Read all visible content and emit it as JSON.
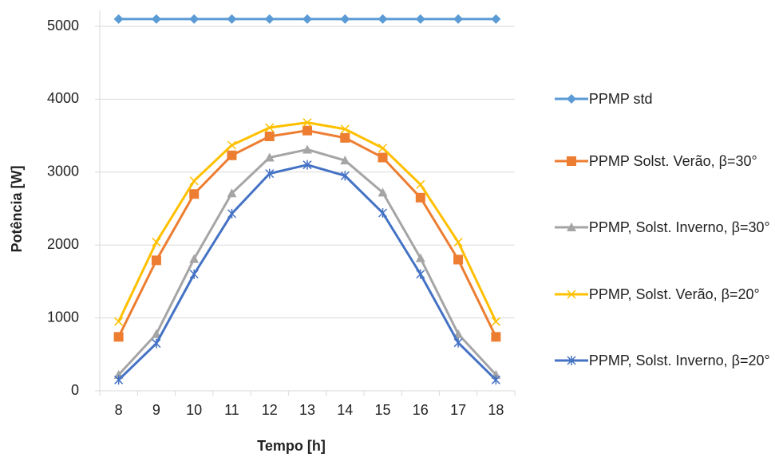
{
  "chart_data": {
    "type": "line",
    "x_label": "Tempo [h]",
    "y_label": "Potência [W]",
    "categories": [
      "8",
      "9",
      "10",
      "11",
      "12",
      "13",
      "14",
      "15",
      "16",
      "17",
      "18"
    ],
    "ylim": [
      0,
      5000
    ],
    "yticks": [
      0,
      1000,
      2000,
      3000,
      4000,
      5000
    ],
    "grid": true,
    "legend": "right",
    "series": [
      {
        "name": "PPMP std",
        "color": "#5b9bd5",
        "marker": "diamond",
        "values": [
          5100,
          5100,
          5100,
          5100,
          5100,
          5100,
          5100,
          5100,
          5100,
          5100,
          5100
        ]
      },
      {
        "name": "PPMP Solst. Verão, β=30°",
        "color": "#ed7d31",
        "marker": "square",
        "values": [
          740,
          1790,
          2700,
          3230,
          3490,
          3570,
          3470,
          3200,
          2650,
          1800,
          740
        ]
      },
      {
        "name": "PPMP, Solst. Inverno, β=30°",
        "color": "#a5a5a5",
        "marker": "triangle",
        "values": [
          220,
          780,
          1810,
          2710,
          3200,
          3310,
          3160,
          2720,
          1820,
          780,
          220
        ]
      },
      {
        "name": "PPMP, Solst. Verão, β=20°",
        "color": "#ffc000",
        "marker": "x",
        "values": [
          950,
          2040,
          2880,
          3370,
          3610,
          3680,
          3590,
          3330,
          2830,
          2040,
          950
        ]
      },
      {
        "name": "PPMP, Solst. Inverno, β=20°",
        "color": "#4472c4",
        "marker": "star",
        "values": [
          150,
          650,
          1600,
          2430,
          2980,
          3100,
          2950,
          2440,
          1600,
          660,
          150
        ]
      }
    ]
  }
}
